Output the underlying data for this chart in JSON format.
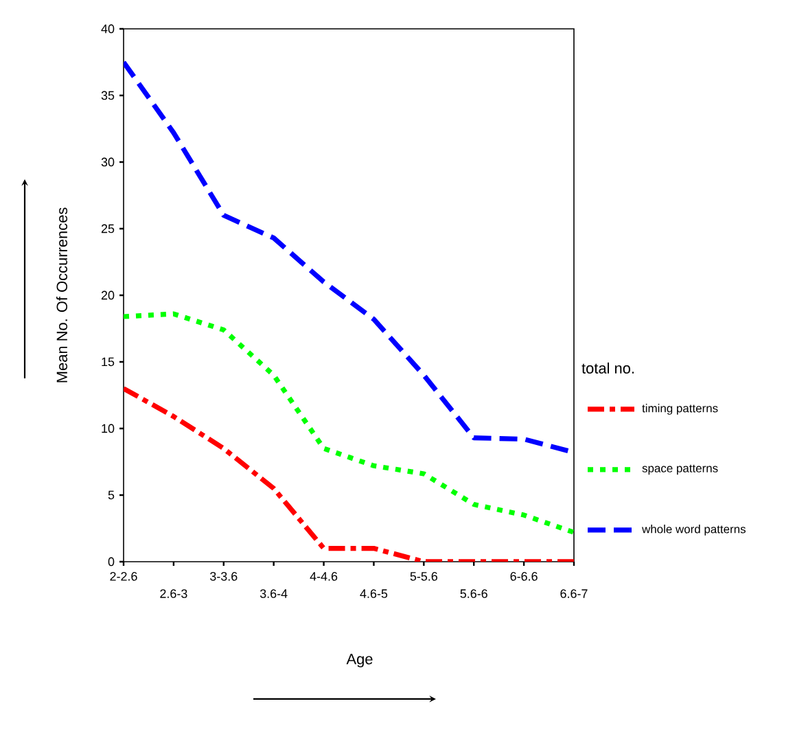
{
  "chart_data": {
    "type": "line",
    "xlabel": "Age",
    "ylabel": "Mean No. Of Occurrences",
    "legend_title": "total no.",
    "legend": "right",
    "categories": [
      "2-2.6",
      "2.6-3",
      "3-3.6",
      "3.6-4",
      "4-4.6",
      "4.6-5",
      "5-5.6",
      "5.6-6",
      "6-6.6",
      "6.6-7"
    ],
    "ylim": [
      0,
      40
    ],
    "yticks": [
      0,
      5,
      10,
      15,
      20,
      25,
      30,
      35,
      40
    ],
    "grid": false,
    "marker": "none",
    "series": [
      {
        "name": "timing patterns",
        "color": "#ff0000",
        "line_style": "dashdot",
        "values": [
          13,
          10.9,
          8.5,
          5.5,
          1.0,
          1.0,
          0,
          0,
          0,
          0
        ]
      },
      {
        "name": "space patterns",
        "color": "#00ff00",
        "line_style": "dotted",
        "values": [
          18.4,
          18.6,
          17.4,
          14,
          8.5,
          7.2,
          6.6,
          4.3,
          3.5,
          2.2
        ]
      },
      {
        "name": "whole word patterns",
        "color": "#0000ff",
        "line_style": "dashed",
        "values": [
          37.5,
          32.2,
          26,
          24.3,
          21,
          18.2,
          14,
          9.3,
          9.2,
          8.2
        ]
      }
    ]
  }
}
